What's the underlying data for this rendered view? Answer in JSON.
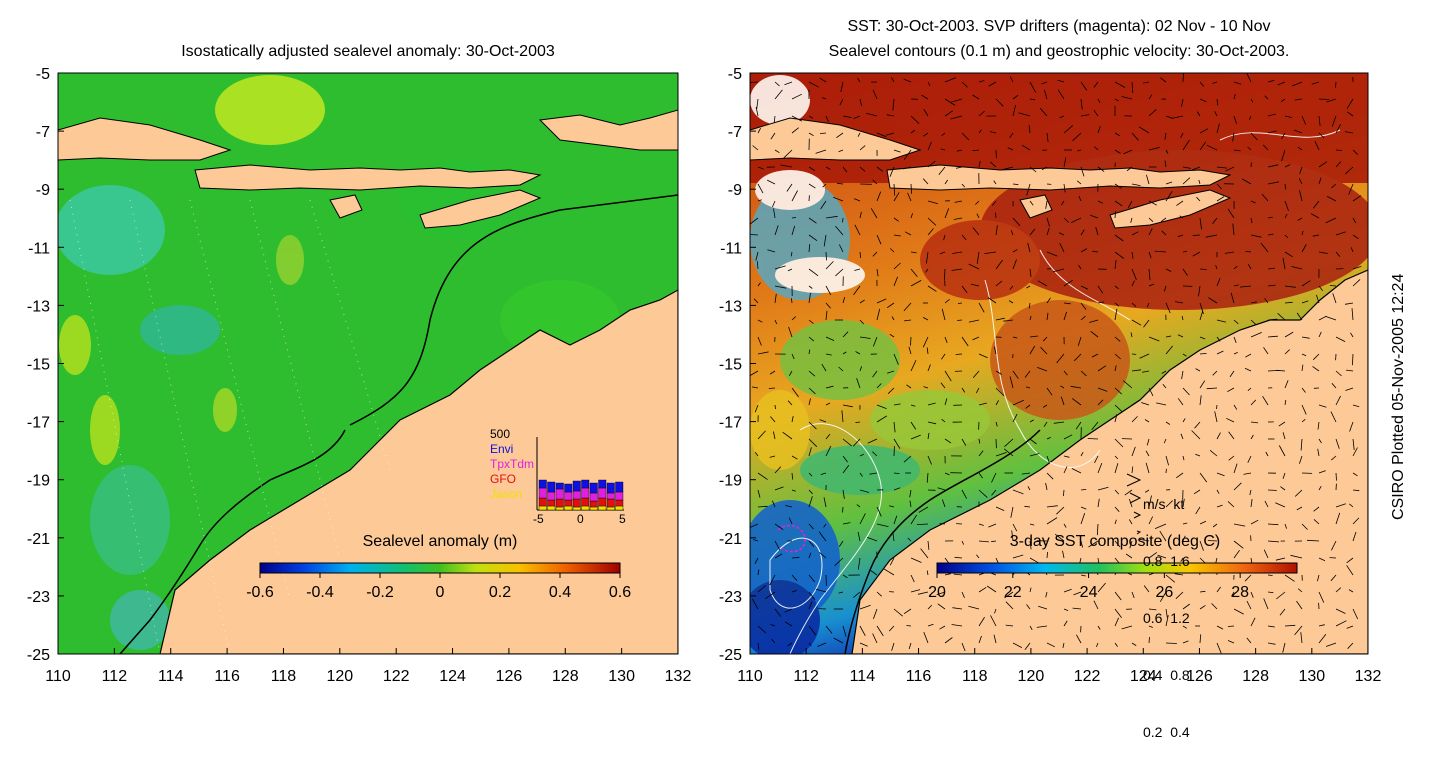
{
  "left_panel": {
    "title": "Isostatically adjusted sealevel anomaly: 30-Oct-2003",
    "colorbar": {
      "label": "Sealevel anomaly (m)",
      "ticks": [
        "-0.6",
        "-0.4",
        "-0.2",
        "0",
        "0.2",
        "0.4",
        "0.6"
      ],
      "range": [
        -0.6,
        0.6
      ]
    },
    "inset": {
      "ymax_label": "500",
      "legend": [
        {
          "name": "Envi",
          "color": "#1010e0"
        },
        {
          "name": "TpxTdm",
          "color": "#e020e0"
        },
        {
          "name": "GFO",
          "color": "#e01010"
        },
        {
          "name": "Jason",
          "color": "#f0e000"
        }
      ],
      "xticks": [
        "-5",
        "0",
        "5"
      ]
    }
  },
  "right_panel": {
    "title_line1": "SST: 30-Oct-2003. SVP drifters (magenta): 02 Nov - 10 Nov",
    "title_line2": "Sealevel contours (0.1 m) and geostrophic velocity: 30-Oct-2003.",
    "colorbar": {
      "label": "3-day SST composite (deg C)",
      "ticks": [
        "20",
        "22",
        "24",
        "26",
        "28"
      ],
      "range": [
        20,
        29.5
      ]
    },
    "velocity_legend": {
      "header_ms": "m/s",
      "header_kt": "kt",
      "rows": [
        {
          "ms": "0.8",
          "kt": "1.6"
        },
        {
          "ms": "0.6",
          "kt": "1.2"
        },
        {
          "ms": "0.4",
          "kt": "0.8"
        },
        {
          "ms": "0.2",
          "kt": "0.4"
        }
      ]
    }
  },
  "axes": {
    "lat_ticks": [
      "-5",
      "-7",
      "-9",
      "-11",
      "-13",
      "-15",
      "-17",
      "-19",
      "-21",
      "-23",
      "-25"
    ],
    "lon_ticks": [
      "110",
      "112",
      "114",
      "116",
      "118",
      "120",
      "122",
      "124",
      "126",
      "128",
      "130",
      "132"
    ],
    "lon_range": [
      110,
      132
    ],
    "lat_range": [
      -25,
      -5
    ]
  },
  "credit": "CSIRO Plotted 05-Nov-2005 12:24",
  "colors": {
    "land": "#fcc997",
    "ocean_left": "#2ebd2e",
    "sst_warm": "#b01808",
    "sst_cool": "#1830c0"
  }
}
